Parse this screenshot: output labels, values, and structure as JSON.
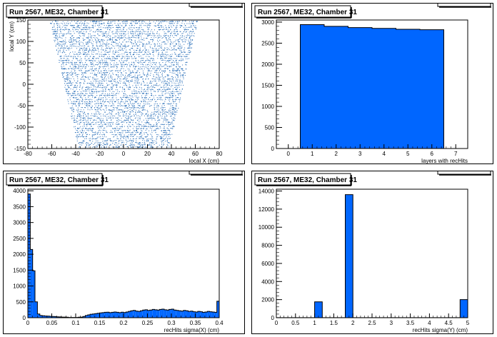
{
  "colors": {
    "fill": "#0066ff",
    "line": "#000000",
    "scatter": "#2a6fb8"
  },
  "chart_data": [
    {
      "type": "scatter",
      "title": "Run 2567, ME32, Chamber 31",
      "xlabel": "local X (cm)",
      "ylabel": "local Y (cm)",
      "xlim": [
        -80,
        80
      ],
      "ylim": [
        -150,
        150
      ],
      "xticks": [
        -80,
        -60,
        -40,
        -20,
        0,
        20,
        40,
        60,
        80
      ],
      "yticks": [
        -150,
        -100,
        -50,
        0,
        50,
        100,
        150
      ],
      "region": {
        "y_bottom": -148,
        "y_top": 150,
        "halfwidth_bottom": 38,
        "halfwidth_top": 62
      }
    },
    {
      "type": "bar",
      "title": "Run 2567, ME32, Chamber 31",
      "xlabel": "layers with recHits",
      "ylabel": "",
      "xlim": [
        -0.5,
        7.5
      ],
      "ylim": [
        0,
        3050
      ],
      "xticks": [
        0,
        1,
        2,
        3,
        4,
        5,
        6,
        7
      ],
      "yticks": [
        0,
        500,
        1000,
        1500,
        2000,
        2500,
        3000
      ],
      "bin_edges": [
        -0.5,
        0.5,
        1.5,
        2.5,
        3.5,
        4.5,
        5.5,
        6.5,
        7.5
      ],
      "values": [
        0,
        2940,
        2900,
        2870,
        2850,
        2830,
        2820,
        0
      ]
    },
    {
      "type": "bar",
      "title": "Run 2567, ME32, Chamber 31",
      "xlabel": "recHits sigma(X) (cm)",
      "ylabel": "",
      "xlim": [
        0,
        0.4
      ],
      "ylim": [
        0,
        4050
      ],
      "xticks": [
        0,
        0.05,
        0.1,
        0.15,
        0.2,
        0.25,
        0.3,
        0.35,
        0.4
      ],
      "yticks": [
        0,
        500,
        1000,
        1500,
        2000,
        2500,
        3000,
        3500,
        4000
      ],
      "bin_width": 0.005,
      "values": [
        3900,
        2150,
        1480,
        500,
        120,
        70,
        60,
        55,
        50,
        45,
        40,
        35,
        30,
        25,
        20,
        20,
        15,
        10,
        10,
        10,
        10,
        15,
        20,
        40,
        70,
        90,
        110,
        120,
        130,
        140,
        150,
        160,
        170,
        175,
        160,
        170,
        180,
        170,
        160,
        175,
        165,
        180,
        200,
        220,
        230,
        210,
        200,
        220,
        240,
        250,
        230,
        240,
        260,
        250,
        240,
        260,
        270,
        250,
        240,
        260,
        270,
        240,
        230,
        220,
        210,
        230,
        220,
        200,
        210,
        190,
        180,
        200,
        190,
        170,
        180,
        200,
        190,
        180,
        170,
        520
      ]
    },
    {
      "type": "bar",
      "title": "Run 2567, ME32, Chamber 31",
      "xlabel": "recHits sigma(Y) (cm)",
      "ylabel": "",
      "xlim": [
        0,
        5
      ],
      "ylim": [
        0,
        14200
      ],
      "xticks": [
        0,
        0.5,
        1,
        1.5,
        2,
        2.5,
        3,
        3.5,
        4,
        4.5,
        5
      ],
      "yticks": [
        0,
        2000,
        4000,
        6000,
        8000,
        10000,
        12000,
        14000
      ],
      "bin_edges": [
        0,
        1,
        1.2,
        1.8,
        2,
        4.8,
        5
      ],
      "values": [
        10,
        1750,
        10,
        13600,
        10,
        2000
      ]
    }
  ]
}
